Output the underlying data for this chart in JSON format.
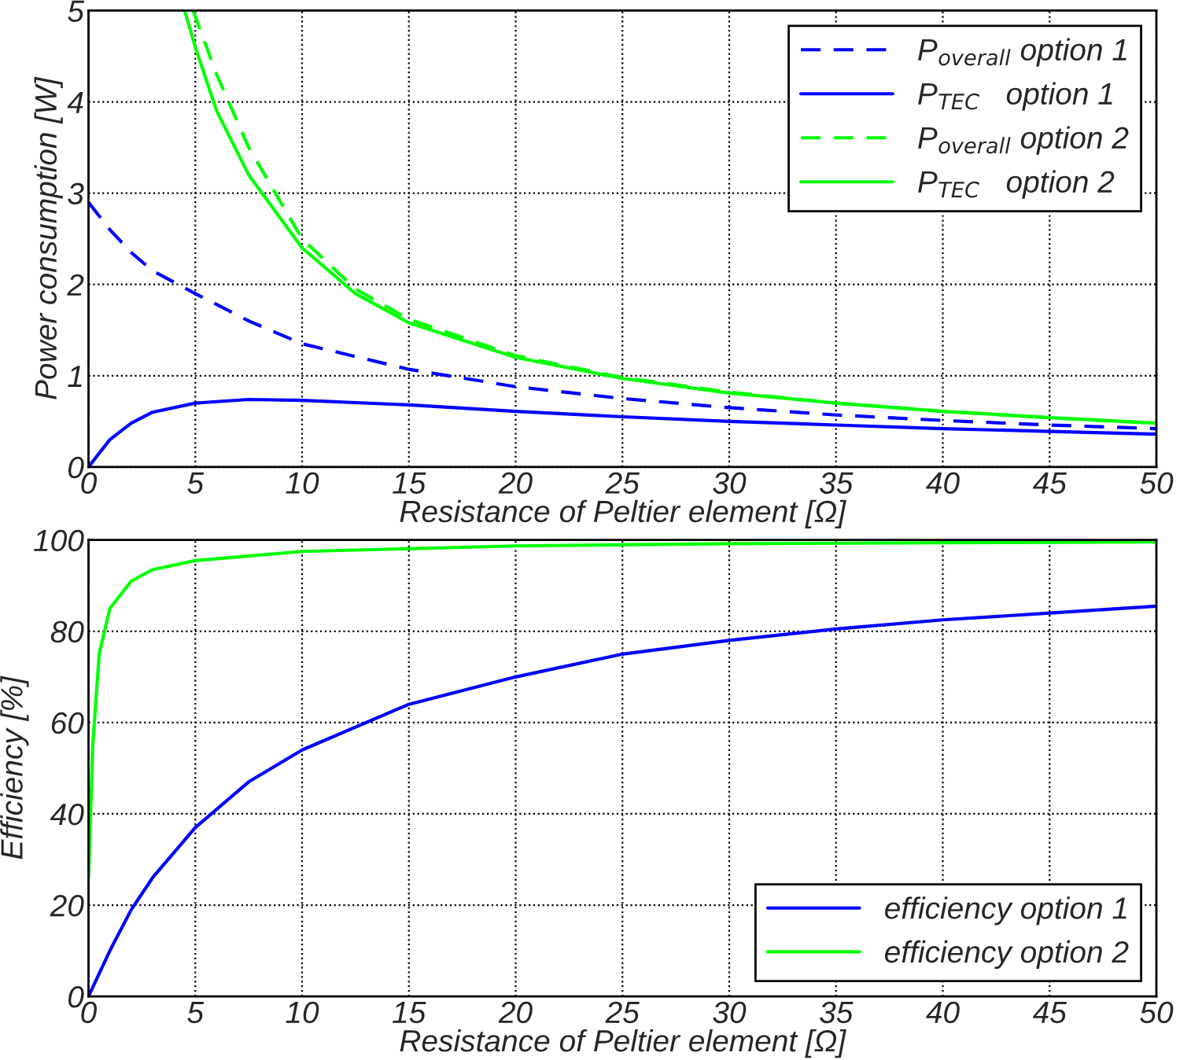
{
  "chart_data": [
    {
      "type": "line",
      "xlabel": "Resistance of Peltier element [Ω]",
      "ylabel": "Power consumption [W]",
      "xlim": [
        0,
        50
      ],
      "ylim": [
        0,
        5
      ],
      "xticks": [
        0,
        5,
        10,
        15,
        20,
        25,
        30,
        35,
        40,
        45,
        50
      ],
      "yticks": [
        0,
        1,
        2,
        3,
        4,
        5
      ],
      "grid": true,
      "legend": "top right",
      "series": [
        {
          "name": "P$_{overall}$ option 1",
          "color": "#0000ff",
          "line_style": "dashed",
          "x": [
            0,
            1,
            2,
            3,
            5,
            7.5,
            10,
            15,
            20,
            25,
            30,
            35,
            40,
            45,
            50
          ],
          "values": [
            2.9,
            2.6,
            2.35,
            2.15,
            1.9,
            1.6,
            1.35,
            1.07,
            0.88,
            0.75,
            0.65,
            0.57,
            0.51,
            0.46,
            0.42
          ]
        },
        {
          "name": "P$_{TEC}$   option 1",
          "color": "#0000ff",
          "line_style": "solid",
          "x": [
            0,
            1,
            2,
            3,
            5,
            7.5,
            10,
            15,
            20,
            25,
            30,
            35,
            40,
            45,
            50
          ],
          "values": [
            0,
            0.3,
            0.48,
            0.6,
            0.7,
            0.74,
            0.73,
            0.68,
            0.61,
            0.55,
            0.5,
            0.46,
            0.42,
            0.39,
            0.36
          ]
        },
        {
          "name": "P$_{overall}$ option 2",
          "color": "#00ff00",
          "line_style": "dashed",
          "x": [
            4.9,
            6,
            7.5,
            10,
            12.5,
            15,
            20,
            25,
            30,
            35,
            40,
            45,
            50
          ],
          "values": [
            5,
            4.3,
            3.5,
            2.5,
            1.95,
            1.62,
            1.22,
            0.98,
            0.82,
            0.7,
            0.61,
            0.54,
            0.48
          ]
        },
        {
          "name": "P$_{TEC}$   option 2",
          "color": "#00ff00",
          "line_style": "solid",
          "x": [
            4.5,
            5,
            6,
            7.5,
            10,
            12.5,
            15,
            20,
            25,
            30,
            35,
            40,
            45,
            50
          ],
          "values": [
            5,
            4.6,
            3.9,
            3.2,
            2.4,
            1.9,
            1.58,
            1.2,
            0.97,
            0.81,
            0.7,
            0.61,
            0.54,
            0.48
          ]
        }
      ]
    },
    {
      "type": "line",
      "xlabel": "Resistance of Peltier element [Ω]",
      "ylabel": "Efficiency [%]",
      "xlim": [
        0,
        50
      ],
      "ylim": [
        0,
        100
      ],
      "xticks": [
        0,
        5,
        10,
        15,
        20,
        25,
        30,
        35,
        40,
        45,
        50
      ],
      "yticks": [
        0,
        20,
        40,
        60,
        80,
        100
      ],
      "grid": true,
      "legend": "bottom right",
      "series": [
        {
          "name": "efficiency option 1",
          "color": "#0000ff",
          "line_style": "solid",
          "x": [
            0,
            1,
            2,
            3,
            5,
            7.5,
            10,
            15,
            20,
            25,
            30,
            35,
            40,
            45,
            50
          ],
          "values": [
            0,
            10,
            19,
            26,
            37,
            47,
            54,
            64,
            70,
            75,
            78,
            80.5,
            82.5,
            84,
            85.5
          ]
        },
        {
          "name": "efficiency option 2",
          "color": "#00ff00",
          "line_style": "solid",
          "x": [
            0,
            0.2,
            0.5,
            1,
            2,
            3,
            5,
            10,
            20,
            30,
            50
          ],
          "values": [
            26,
            55,
            75,
            85,
            91,
            93.5,
            95.5,
            97.5,
            98.7,
            99.2,
            99.6
          ]
        }
      ]
    }
  ]
}
